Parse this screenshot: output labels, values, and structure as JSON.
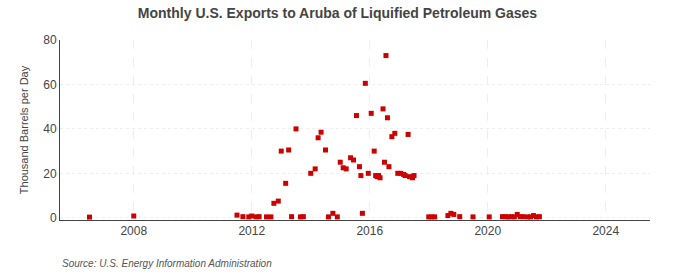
{
  "chart_data": {
    "type": "scatter",
    "title": "Monthly U.S. Exports to Aruba of Liquified Petroleum Gases",
    "ylabel": "Thousand Barrels per Day",
    "annotations": [
      "Source: U.S. Energy Information Administration"
    ],
    "color": "#cc0000",
    "marker": "square",
    "grid": true,
    "xlim": [
      2005.5,
      2025.5
    ],
    "ylim": [
      -1,
      80
    ],
    "xticks": [
      2008,
      2012,
      2016,
      2020,
      2024
    ],
    "yticks": [
      0,
      20,
      40,
      60,
      80
    ],
    "x": [
      2006.5,
      2008.0,
      2011.5,
      2011.7,
      2011.9,
      2012.0,
      2012.15,
      2012.25,
      2012.5,
      2012.65,
      2012.75,
      2012.9,
      2013.0,
      2013.15,
      2013.25,
      2013.35,
      2013.5,
      2013.65,
      2013.75,
      2014.0,
      2014.15,
      2014.25,
      2014.35,
      2014.5,
      2014.6,
      2014.75,
      2014.9,
      2015.0,
      2015.1,
      2015.2,
      2015.35,
      2015.45,
      2015.55,
      2015.65,
      2015.7,
      2015.75,
      2015.85,
      2015.95,
      2016.05,
      2016.15,
      2016.2,
      2016.25,
      2016.3,
      2016.35,
      2016.45,
      2016.5,
      2016.55,
      2016.6,
      2016.65,
      2016.75,
      2016.85,
      2016.95,
      2017.05,
      2017.15,
      2017.2,
      2017.3,
      2017.35,
      2017.45,
      2017.5,
      2018.0,
      2018.1,
      2018.2,
      2018.65,
      2018.75,
      2018.85,
      2019.05,
      2019.5,
      2020.05,
      2020.5,
      2020.6,
      2020.7,
      2020.8,
      2020.9,
      2021.0,
      2021.1,
      2021.2,
      2021.35,
      2021.45,
      2021.55,
      2021.65,
      2021.75
    ],
    "values": [
      0.3,
      0.8,
      1.2,
      0.5,
      0.4,
      0.8,
      0.4,
      0.5,
      0.4,
      0.4,
      6.5,
      7.5,
      30.0,
      15.5,
      30.5,
      0.5,
      40.0,
      0.4,
      0.5,
      20.0,
      22.0,
      36.0,
      38.5,
      30.5,
      0.4,
      2.0,
      0.4,
      25.0,
      22.5,
      22.0,
      27.0,
      26.0,
      46.0,
      23.0,
      19.0,
      2.0,
      60.5,
      20.0,
      47.0,
      30.0,
      19.0,
      18.5,
      19.0,
      18.0,
      49.0,
      25.0,
      73.0,
      45.0,
      23.0,
      36.5,
      38.0,
      20.0,
      20.0,
      19.5,
      19.0,
      37.5,
      18.5,
      18.0,
      19.0,
      0.4,
      0.4,
      0.4,
      1.0,
      2.0,
      1.5,
      0.5,
      0.4,
      0.4,
      0.5,
      0.5,
      0.4,
      0.5,
      0.4,
      1.5,
      0.5,
      0.5,
      0.4,
      0.4,
      1.0,
      0.4,
      0.5
    ]
  }
}
